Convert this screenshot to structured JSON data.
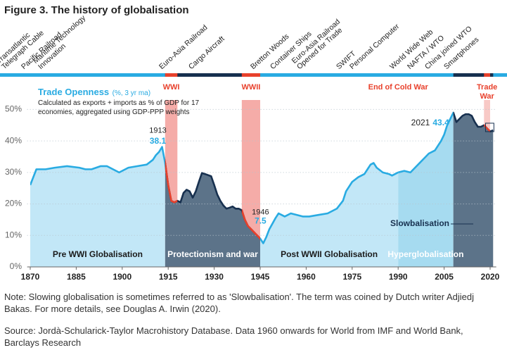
{
  "chart_data": {
    "type": "line",
    "title": "Figure 3. The history of globalisation",
    "series": [
      {
        "name": "Trade Openness",
        "unit": "(%, 3 yr ma)",
        "color": "#29abe2",
        "description": "Calculated as exports + imports as % of GDP for 17 economies, aggregated using GDP-PPP weights",
        "values": [
          26,
          31,
          31,
          31.5,
          32,
          31.5,
          31,
          31,
          32,
          32,
          31,
          30,
          31.5,
          32,
          32.5,
          34,
          35.5,
          36.5,
          38.1,
          33,
          26,
          21,
          20.5,
          21,
          20.5,
          23.5,
          24.5,
          24,
          22,
          24,
          27,
          29.8,
          29.5,
          28.8,
          26,
          23,
          21,
          19.5,
          18.5,
          18.8,
          19.2,
          18.5,
          18.5,
          18,
          15,
          13,
          12,
          11,
          10,
          9,
          7.5,
          9.5,
          12,
          15.5,
          17,
          16.5,
          16,
          17,
          16.5,
          16,
          16,
          16.5,
          17,
          18.5,
          21,
          24,
          27,
          28.5,
          29.5,
          31,
          32.5,
          33,
          31.5,
          30,
          29.5,
          29,
          29.5,
          30,
          30.5,
          30,
          31,
          33,
          35,
          36,
          37,
          38.5,
          40,
          42,
          45,
          47,
          49,
          46,
          47,
          48,
          48.5,
          48.5,
          48,
          46,
          44.5,
          44.5,
          45,
          44,
          43,
          43.4
        ]
      }
    ],
    "x": [
      1870,
      1872,
      1875,
      1878,
      1882,
      1886,
      1888,
      1890,
      1893,
      1895,
      1897,
      1899,
      1902,
      1905,
      1908,
      1910,
      1911,
      1912,
      1913,
      1914,
      1915,
      1916,
      1917,
      1918,
      1919,
      1920,
      1921,
      1922,
      1923,
      1924,
      1925,
      1926,
      1927,
      1929,
      1930,
      1931,
      1932,
      1933,
      1934,
      1935,
      1936,
      1937,
      1938,
      1939,
      1940,
      1941,
      1942,
      1943,
      1944,
      1945,
      1946,
      1947,
      1948,
      1950,
      1951,
      1952,
      1953,
      1955,
      1957,
      1959,
      1961,
      1964,
      1967,
      1970,
      1972,
      1973,
      1975,
      1977,
      1979,
      1980,
      1981,
      1982,
      1983,
      1985,
      1987,
      1988,
      1989,
      1990,
      1992,
      1994,
      1995,
      1997,
      1999,
      2000,
      2002,
      2003,
      2004,
      2005,
      2006,
      2007,
      2008,
      2009,
      2010,
      2011,
      2012,
      2013,
      2014,
      2015,
      2016,
      2017,
      2018,
      2019,
      2020,
      2021
    ],
    "xlim": [
      1869,
      2022
    ],
    "xticks": [
      1870,
      1885,
      1900,
      1915,
      1930,
      1945,
      1960,
      1975,
      1990,
      2005,
      2020
    ],
    "ylim": [
      0,
      53
    ],
    "yticks": [
      {
        "value": 0,
        "label": "0%"
      },
      {
        "value": 10,
        "label": "10%"
      },
      {
        "value": 20,
        "label": "20%"
      },
      {
        "value": 30,
        "label": "30%"
      },
      {
        "value": 40,
        "label": "40%"
      },
      {
        "value": 50,
        "label": "50%"
      }
    ],
    "grid": true,
    "eras": [
      {
        "label": "Pre WWI Globalisation",
        "start": 1870,
        "end": 1914,
        "fill": "#c2e7f7",
        "line": "#29abe2"
      },
      {
        "label": "Protectionism and war",
        "start": 1914,
        "end": 1945,
        "fill": "#5c7389",
        "line": "#17304f"
      },
      {
        "label": "Post WWII Globalisation",
        "start": 1945,
        "end": 1990,
        "fill": "#c2e7f7",
        "line": "#29abe2"
      },
      {
        "label": "Hyperglobalisation",
        "start": 1990,
        "end": 2008,
        "fill": "#a6dbf0",
        "line": "#29abe2"
      },
      {
        "label": "Slowbalisation",
        "start": 2008,
        "end": 2021,
        "fill": "#5c7389",
        "line": "#17304f"
      }
    ],
    "wars": [
      {
        "label": "WWI",
        "start": 1914,
        "end": 1918,
        "color": "#f5aca8"
      },
      {
        "label": "WWII",
        "start": 1939,
        "end": 1945,
        "color": "#f5aca8"
      },
      {
        "label": "Trade War",
        "start": 2018,
        "end": 2020,
        "color": "#f8c9c6"
      }
    ],
    "war_line_color": "#e8412c",
    "events": [
      {
        "label": "End of Cold War",
        "x": 1990
      }
    ],
    "point_labels": [
      {
        "x": 1913,
        "value": 38.1
      },
      {
        "x": 1946,
        "value": 7.5
      },
      {
        "x": 2021,
        "value": 43.4
      }
    ],
    "innovations": [
      [
        "Transatlantic",
        "Telegraph Cable"
      ],
      [
        "Pacific Railroad"
      ],
      [
        "Maritime Technology",
        "Innovation"
      ],
      [
        "Euro-Asia Railroad"
      ],
      [
        "Cargo Aircraft"
      ],
      [
        "Bretton Woods"
      ],
      [
        "Container Ships"
      ],
      [
        "Euro-Asia Railroad",
        "Opened for Trade"
      ],
      [
        "SWIFT"
      ],
      [
        "Personal Computer"
      ],
      [
        "World Wide Web"
      ],
      [
        "NAFTA / WTO"
      ],
      [
        "China joined WTO"
      ],
      [
        "Smartphones"
      ]
    ],
    "notes": [
      "Note: Slowing globalisation is sometimes referred to as 'Slowbalisation'. The term was coined by Dutch writer Adjiedj Bakas. For more details, see Douglas A. Irwin (2020).",
      "Source: Jordà-Schularick-Taylor Macrohistory Database. Data 1960 onwards for World from IMF and World Bank, Barclays Research"
    ]
  }
}
